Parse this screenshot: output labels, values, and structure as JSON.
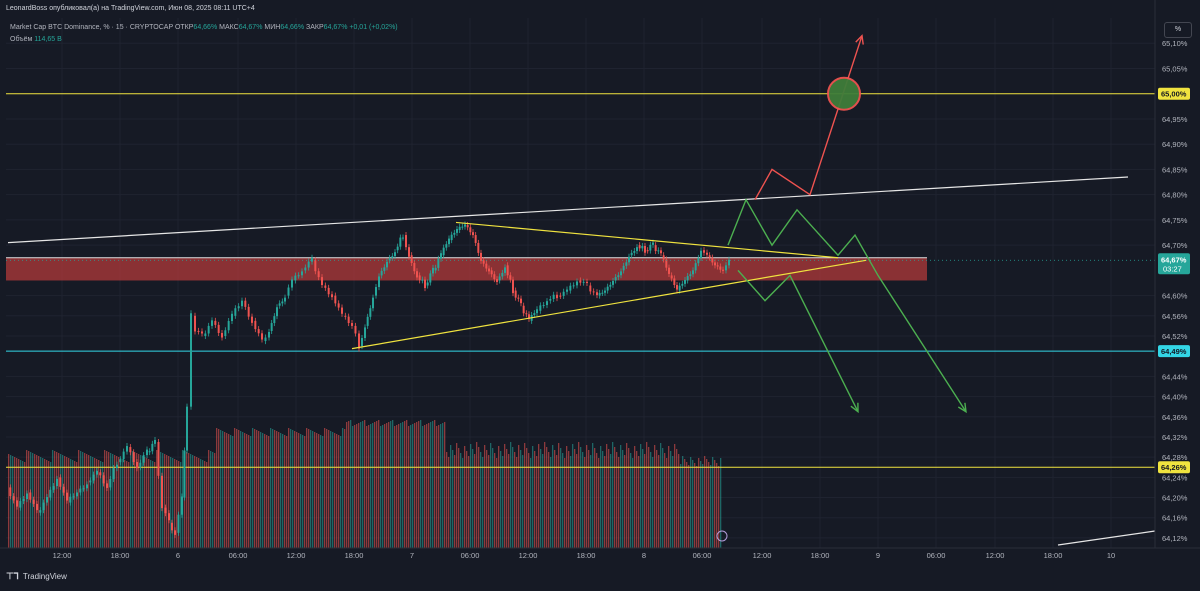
{
  "header": {
    "published_by": "LeonardBoss опубликовал(а) на TradingView.com, Июн 08, 2025 08:11 UTC+4"
  },
  "legend": {
    "symbol": "Market Cap BTC Dominance, % · 15 · CRYPTOCAP",
    "open_label": "ОТКР",
    "open_value": "64,66%",
    "high_label": "МАКС",
    "high_value": "64,67%",
    "low_label": "МИН",
    "low_value": "64,66%",
    "close_label": "ЗАКР",
    "close_value": "64,67%",
    "change": "+0,01 (+0,02%)",
    "volume_label": "Объём",
    "volume_value": "114,65 B"
  },
  "scale_button": "%",
  "footer": {
    "logo_text": "TradingView"
  },
  "colors": {
    "background": "#161a25",
    "up": "#26a69a",
    "down": "#ef5350",
    "yellow_line": "#f0e33f",
    "cyan_line": "#33d6e6",
    "zone_fill": "#b23a3a",
    "green_path": "#4caf50",
    "red_path": "#ef5350"
  },
  "chart_data": {
    "type": "candlestick",
    "title": "Market Cap BTC Dominance, % · 15 · CRYPTOCAP",
    "y_axis": {
      "ticks": [
        "65,10%",
        "65,05%",
        "64,95%",
        "64,90%",
        "64,85%",
        "64,80%",
        "64,75%",
        "64,70%",
        "64,60%",
        "64,56%",
        "64,52%",
        "64,44%",
        "64,40%",
        "64,36%",
        "64,32%",
        "64,28%",
        "64,24%",
        "64,20%",
        "64,16%",
        "64,12%"
      ]
    },
    "x_axis": {
      "ticks": [
        "12:00",
        "18:00",
        "6",
        "06:00",
        "12:00",
        "18:00",
        "7",
        "06:00",
        "12:00",
        "18:00",
        "8",
        "06:00",
        "12:00",
        "18:00",
        "9",
        "06:00",
        "12:00",
        "18:00",
        "10"
      ]
    },
    "last_price": {
      "label": "64,67%",
      "countdown": "03:27"
    },
    "horizontal_levels": [
      {
        "value": 65.0,
        "label": "65,00%",
        "color": "#f0e33f"
      },
      {
        "value": 64.49,
        "label": "64,49%",
        "color": "#33d6e6"
      },
      {
        "value": 64.26,
        "label": "64,26%",
        "color": "#f0e33f"
      }
    ],
    "resistance_zone": {
      "from": 64.63,
      "to": 64.675
    },
    "price_path": [
      [
        0,
        64.22
      ],
      [
        10,
        64.18
      ],
      [
        20,
        64.21
      ],
      [
        30,
        64.17
      ],
      [
        40,
        64.2
      ],
      [
        50,
        64.24
      ],
      [
        60,
        64.19
      ],
      [
        70,
        64.21
      ],
      [
        80,
        64.23
      ],
      [
        90,
        64.25
      ],
      [
        100,
        64.22
      ],
      [
        110,
        64.27
      ],
      [
        120,
        64.3
      ],
      [
        130,
        64.26
      ],
      [
        140,
        64.29
      ],
      [
        148,
        64.31
      ],
      [
        155,
        64.18
      ],
      [
        162,
        64.15
      ],
      [
        168,
        64.13
      ],
      [
        175,
        64.2
      ],
      [
        180,
        64.38
      ],
      [
        184,
        64.56
      ],
      [
        188,
        64.53
      ],
      [
        195,
        64.52
      ],
      [
        205,
        64.55
      ],
      [
        215,
        64.52
      ],
      [
        225,
        64.56
      ],
      [
        235,
        64.59
      ],
      [
        245,
        64.55
      ],
      [
        255,
        64.51
      ],
      [
        262,
        64.53
      ],
      [
        270,
        64.58
      ],
      [
        278,
        64.6
      ],
      [
        285,
        64.63
      ],
      [
        295,
        64.65
      ],
      [
        305,
        64.67
      ],
      [
        315,
        64.62
      ],
      [
        325,
        64.6
      ],
      [
        335,
        64.56
      ],
      [
        345,
        64.54
      ],
      [
        352,
        64.5
      ],
      [
        358,
        64.54
      ],
      [
        366,
        64.6
      ],
      [
        372,
        64.64
      ],
      [
        380,
        64.67
      ],
      [
        388,
        64.69
      ],
      [
        396,
        64.72
      ],
      [
        402,
        64.68
      ],
      [
        410,
        64.64
      ],
      [
        418,
        64.62
      ],
      [
        426,
        64.65
      ],
      [
        434,
        64.68
      ],
      [
        442,
        64.71
      ],
      [
        450,
        64.73
      ],
      [
        458,
        64.74
      ],
      [
        466,
        64.72
      ],
      [
        474,
        64.67
      ],
      [
        482,
        64.65
      ],
      [
        490,
        64.63
      ],
      [
        498,
        64.66
      ],
      [
        506,
        64.61
      ],
      [
        514,
        64.58
      ],
      [
        522,
        64.55
      ],
      [
        530,
        64.57
      ],
      [
        540,
        64.59
      ],
      [
        550,
        64.6
      ],
      [
        560,
        64.61
      ],
      [
        570,
        64.63
      ],
      [
        580,
        64.62
      ],
      [
        590,
        64.6
      ],
      [
        598,
        64.61
      ],
      [
        606,
        64.63
      ],
      [
        614,
        64.65
      ],
      [
        622,
        64.68
      ],
      [
        630,
        64.7
      ],
      [
        638,
        64.69
      ],
      [
        646,
        64.7
      ],
      [
        654,
        64.68
      ],
      [
        662,
        64.64
      ],
      [
        670,
        64.61
      ],
      [
        678,
        64.63
      ],
      [
        686,
        64.65
      ],
      [
        694,
        64.69
      ],
      [
        700,
        64.68
      ],
      [
        708,
        64.66
      ],
      [
        716,
        64.65
      ],
      [
        722,
        64.67
      ]
    ],
    "volume_profile_note": "Объём",
    "trendlines": [
      {
        "name": "upper-channel",
        "from": [
          8,
          64.705
        ],
        "to": [
          1128,
          64.835
        ]
      },
      {
        "name": "triangle-top",
        "from": [
          456,
          64.745
        ],
        "to": [
          838,
          64.675
        ]
      },
      {
        "name": "triangle-bottom",
        "from": [
          352,
          64.495
        ],
        "to": [
          866,
          64.67
        ]
      }
    ],
    "forecast_paths": [
      {
        "color": "red",
        "points": [
          [
            755,
            64.79
          ],
          [
            772,
            64.85
          ],
          [
            810,
            64.8
          ],
          [
            862,
            65.115
          ]
        ]
      },
      {
        "color": "green",
        "points": [
          [
            728,
            64.7
          ],
          [
            746,
            64.79
          ],
          [
            772,
            64.7
          ],
          [
            797,
            64.77
          ],
          [
            838,
            64.68
          ],
          [
            855,
            64.72
          ],
          [
            878,
            64.64
          ],
          [
            966,
            64.37
          ]
        ]
      },
      {
        "color": "green",
        "points": [
          [
            738,
            64.65
          ],
          [
            765,
            64.59
          ],
          [
            790,
            64.64
          ],
          [
            858,
            64.37
          ]
        ]
      }
    ],
    "target_circle": {
      "x": 844,
      "value": 65.0
    }
  }
}
